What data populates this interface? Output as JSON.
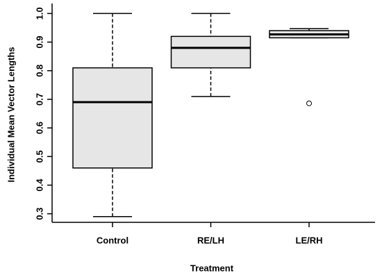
{
  "chart_data": {
    "type": "box",
    "x_label": "Treatment",
    "y_label": "Individual Mean Vector Lengths",
    "categories": [
      "Control",
      "RE/LH",
      "LE/RH"
    ],
    "boxes": [
      {
        "min": 0.29,
        "q1": 0.46,
        "median": 0.69,
        "q3": 0.81,
        "max": 1.0,
        "outliers": []
      },
      {
        "min": 0.71,
        "q1": 0.81,
        "median": 0.88,
        "q3": 0.92,
        "max": 1.0,
        "outliers": []
      },
      {
        "min": 0.915,
        "q1": 0.915,
        "median": 0.927,
        "q3": 0.94,
        "max": 0.947,
        "outliers": [
          0.686
        ]
      }
    ],
    "color": "#e6e6e6",
    "ylim": [
      0.27,
      1.035
    ],
    "yticks": [
      0.3,
      0.4,
      0.5,
      0.6,
      0.7,
      0.8,
      0.9,
      {
        "value": 1.0,
        "label": "1.0"
      }
    ]
  }
}
